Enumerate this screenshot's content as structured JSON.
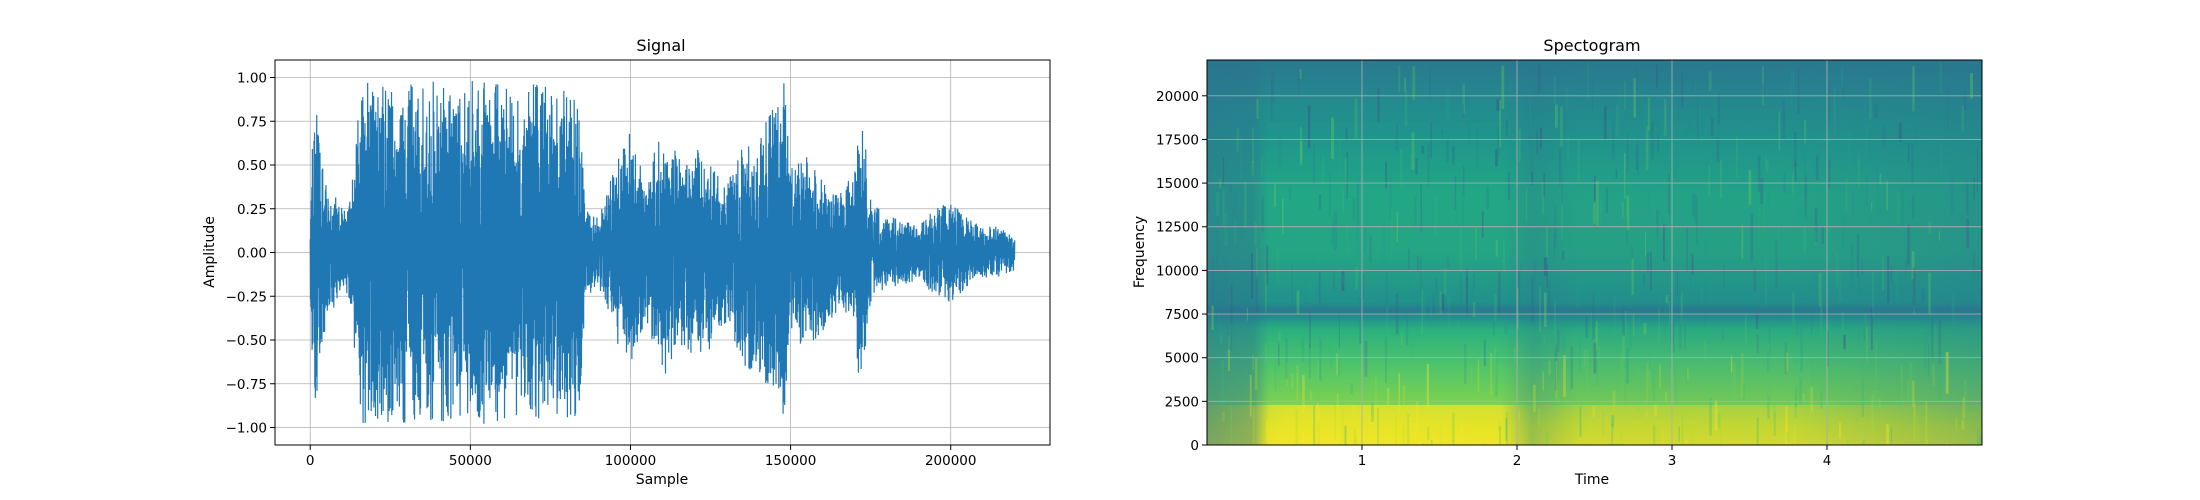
{
  "chart_data": [
    {
      "type": "line",
      "title": "Signal",
      "xlabel": "Sample",
      "ylabel": "Amplitude",
      "xlim": [
        -11000,
        231000
      ],
      "ylim": [
        -1.1,
        1.1
      ],
      "x_ticks": [
        0,
        50000,
        100000,
        150000,
        200000
      ],
      "x_tick_labels": [
        "0",
        "50000",
        "100000",
        "150000",
        "200000"
      ],
      "y_ticks": [
        1.0,
        0.75,
        0.5,
        0.25,
        0.0,
        -0.25,
        -0.5,
        -0.75,
        -1.0
      ],
      "y_tick_labels": [
        "1.00",
        "0.75",
        "0.50",
        "0.25",
        "0.00",
        "−0.25",
        "−0.50",
        "−0.75",
        "−1.00"
      ],
      "grid": true,
      "line_color": "#1f77b4",
      "series": [
        {
          "x": [
            0,
            1500,
            3000,
            6000,
            12000,
            16000,
            20000,
            28000,
            40000,
            55000,
            70000,
            80000,
            84000,
            86000,
            90000,
            95000,
            100000,
            105000,
            110000,
            115000,
            120000,
            125000,
            130000,
            135000,
            140000,
            145000,
            148000,
            150000,
            155000,
            160000,
            165000,
            170000,
            172000,
            175000,
            180000,
            185000,
            190000,
            195000,
            200000,
            205000,
            210000,
            215000,
            220000
          ],
          "envelope": [
            0.3,
            0.98,
            0.6,
            0.35,
            0.25,
            0.98,
            0.97,
            0.98,
            0.98,
            0.98,
            0.98,
            0.95,
            0.98,
            0.25,
            0.2,
            0.5,
            0.7,
            0.4,
            0.75,
            0.55,
            0.6,
            0.55,
            0.4,
            0.65,
            0.7,
            0.85,
            0.97,
            0.5,
            0.55,
            0.45,
            0.35,
            0.45,
            0.88,
            0.3,
            0.2,
            0.2,
            0.15,
            0.25,
            0.3,
            0.2,
            0.15,
            0.15,
            0.1
          ]
        }
      ]
    },
    {
      "type": "heatmap",
      "title": "Spectogram",
      "xlabel": "Time",
      "ylabel": "Frequency",
      "xlim": [
        0,
        5
      ],
      "ylim": [
        0,
        22050
      ],
      "x_ticks": [
        1,
        2,
        3,
        4
      ],
      "x_tick_labels": [
        "1",
        "2",
        "3",
        "4"
      ],
      "y_ticks": [
        0,
        2500,
        5000,
        7500,
        10000,
        12500,
        15000,
        17500,
        20000
      ],
      "y_tick_labels": [
        "0",
        "2500",
        "5000",
        "7500",
        "10000",
        "12500",
        "15000",
        "17500",
        "20000"
      ],
      "grid": true,
      "colormap": "viridis"
    }
  ]
}
